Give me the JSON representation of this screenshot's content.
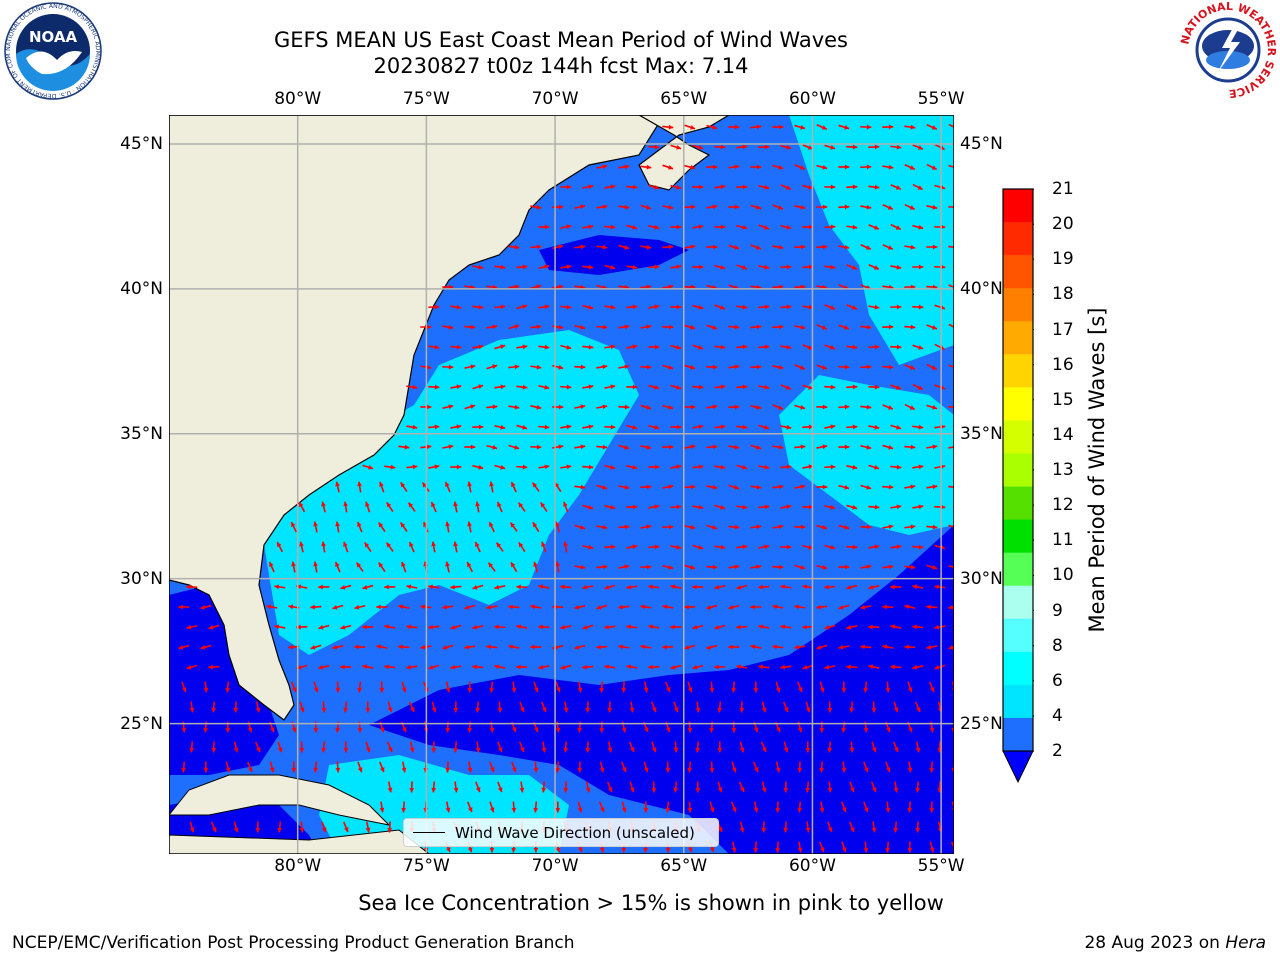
{
  "title": {
    "line1": "GEFS MEAN US East Coast Mean Period of Wind Waves",
    "line2": "20230827 t00z 144h fcst   Max: 7.14"
  },
  "map": {
    "lon_ticks": [
      "80°W",
      "75°W",
      "70°W",
      "65°W",
      "60°W",
      "55°W"
    ],
    "lat_ticks": [
      "45°N",
      "40°N",
      "35°N",
      "30°N",
      "25°N"
    ],
    "extent": {
      "lon": [
        -85,
        -54.5
      ],
      "lat": [
        20.5,
        46
      ]
    },
    "colors": {
      "land": "#efeedd",
      "level_2_4": "#1f6fff",
      "level_4_6": "#00e5ff",
      "level_0_2": "#0000ee",
      "arrows": "#ff0000",
      "grid": "#b0b0b0"
    }
  },
  "colorbar": {
    "label": "Mean Period of Wind Waves [s]",
    "ticks": [
      "21",
      "20",
      "19",
      "18",
      "17",
      "16",
      "15",
      "14",
      "13",
      "12",
      "11",
      "10",
      "9",
      "8",
      "6",
      "4",
      "2"
    ],
    "colors_top_to_bottom": [
      "#ff0000",
      "#ff2a00",
      "#ff5500",
      "#ff7f00",
      "#ffaa00",
      "#ffd400",
      "#ffff00",
      "#d4ff00",
      "#aaff00",
      "#55e000",
      "#00e000",
      "#55ff55",
      "#aaffee",
      "#55ffff",
      "#00ffff",
      "#00e5ff",
      "#1f6fff"
    ],
    "extend_color": "#0000ff"
  },
  "legend": {
    "label": "Wind Wave Direction (unscaled)"
  },
  "caption": "Sea Ice Concentration > 15% is shown in pink to yellow",
  "footer": {
    "left": "NCEP/EMC/Verification Post Processing Product Generation Branch",
    "right_date": "28 Aug 2023 on ",
    "right_machine": "Hera"
  },
  "logos": {
    "noaa": {
      "text": "NOAA",
      "ring_text": "NATIONAL OCEANIC AND ATMOSPHERIC ADMINISTRATION · U.S. DEPARTMENT OF COMMERCE"
    },
    "nws": {
      "ring_text": "NATIONAL WEATHER SERVICE"
    }
  }
}
